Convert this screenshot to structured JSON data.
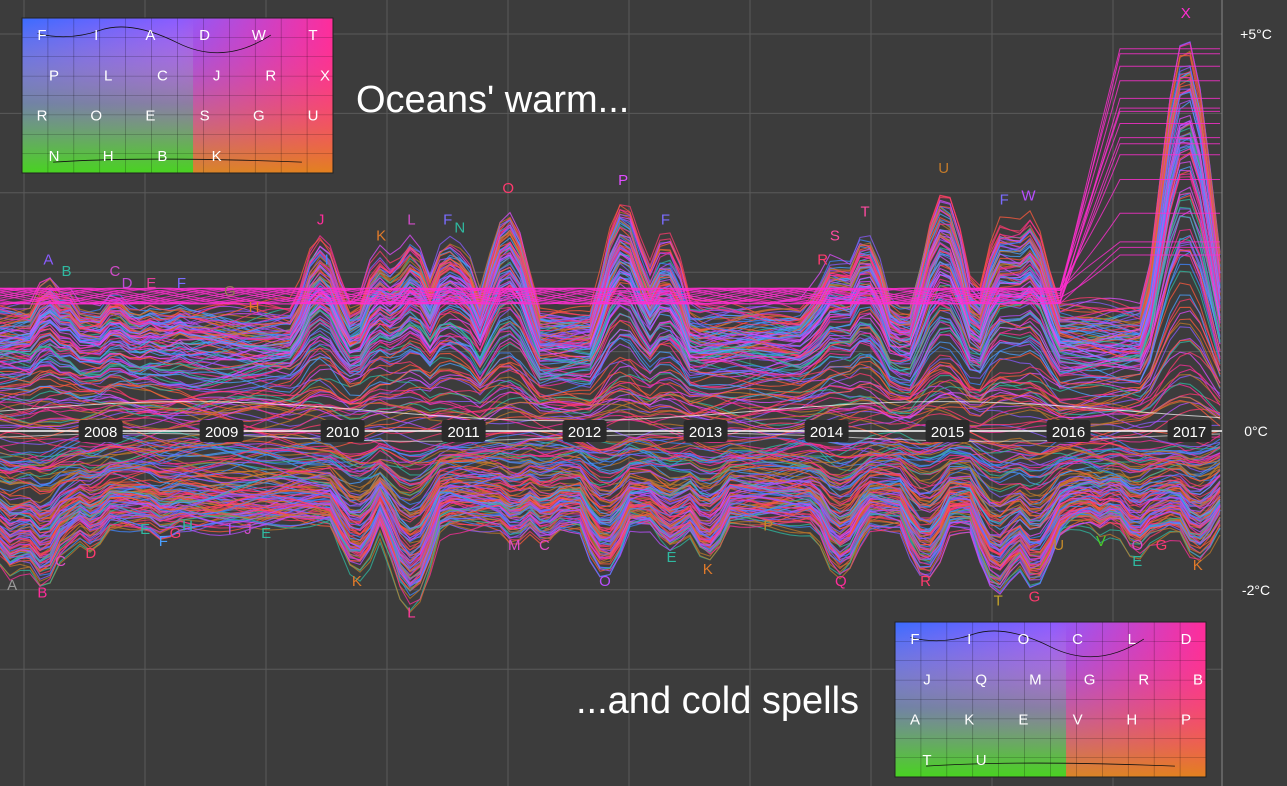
{
  "chart_data": {
    "type": "line",
    "title": "",
    "headline_warm": "Oceans' warm...",
    "headline_cold": "...and cold spells",
    "x": {
      "range": [
        2007.35,
        2017.45
      ],
      "tick_labels": [
        "2008",
        "2009",
        "2010",
        "2011",
        "2012",
        "2013",
        "2014",
        "2015",
        "2016",
        "2017"
      ],
      "tick_values": [
        2008,
        2009,
        2010,
        2011,
        2012,
        2013,
        2014,
        2015,
        2016,
        2017
      ]
    },
    "y": {
      "range": [
        -3.3,
        5.5
      ],
      "tick_labels": [
        "+5°C",
        "0°C",
        "-2°C"
      ],
      "tick_values": [
        5,
        0,
        -2
      ]
    },
    "grid": true,
    "colors": {
      "background": "#3c3c3c",
      "grid": "#5a5a5a",
      "baseline": "#ffffff",
      "palette": [
        "#ff2d9a",
        "#e04cff",
        "#8a5cff",
        "#3f86ff",
        "#2fb9a0",
        "#ff5a3c",
        "#c27a2a",
        "#ff3a6e",
        "#b84dff",
        "#4aa0ff"
      ]
    },
    "warm_events": [
      {
        "label": "A",
        "x": 2007.75,
        "y": 2.1,
        "color": "#8a5cff"
      },
      {
        "label": "B",
        "x": 2007.9,
        "y": 1.95,
        "color": "#2fb9a0"
      },
      {
        "label": "C",
        "x": 2008.3,
        "y": 1.95,
        "color": "#d04cc8"
      },
      {
        "label": "D",
        "x": 2008.4,
        "y": 1.8,
        "color": "#c04cd8"
      },
      {
        "label": "E",
        "x": 2008.6,
        "y": 1.8,
        "color": "#e0409a"
      },
      {
        "label": "F",
        "x": 2008.85,
        "y": 1.8,
        "color": "#7a6cff"
      },
      {
        "label": "G",
        "x": 2009.25,
        "y": 1.7,
        "color": "#9a7a5a"
      },
      {
        "label": "H",
        "x": 2009.45,
        "y": 1.5,
        "color": "#e07a2a"
      },
      {
        "label": "I",
        "x": 2010.05,
        "y": 2.1,
        "color": "#3f86ff"
      },
      {
        "label": "J",
        "x": 2010.0,
        "y": 2.6,
        "color": "#ff2d9a"
      },
      {
        "label": "K",
        "x": 2010.5,
        "y": 2.4,
        "color": "#e07a2a"
      },
      {
        "label": "L",
        "x": 2010.75,
        "y": 2.6,
        "color": "#d04cc8"
      },
      {
        "label": "F",
        "x": 2011.05,
        "y": 2.6,
        "color": "#7a6cff"
      },
      {
        "label": "N",
        "x": 2011.15,
        "y": 2.5,
        "color": "#2fb9a0"
      },
      {
        "label": "O",
        "x": 2011.55,
        "y": 3.0,
        "color": "#ff3a6e"
      },
      {
        "label": "P",
        "x": 2012.5,
        "y": 3.1,
        "color": "#e04cff"
      },
      {
        "label": "F",
        "x": 2012.85,
        "y": 2.6,
        "color": "#7a6cff"
      },
      {
        "label": "S",
        "x": 2014.25,
        "y": 2.4,
        "color": "#ff4aa0"
      },
      {
        "label": "R",
        "x": 2014.15,
        "y": 2.1,
        "color": "#ff3a6e"
      },
      {
        "label": "T",
        "x": 2014.5,
        "y": 2.7,
        "color": "#ff4aa0"
      },
      {
        "label": "U",
        "x": 2015.15,
        "y": 3.25,
        "color": "#c27a2a"
      },
      {
        "label": "F",
        "x": 2015.65,
        "y": 2.85,
        "color": "#7a6cff"
      },
      {
        "label": "W",
        "x": 2015.85,
        "y": 2.9,
        "color": "#b84dff"
      },
      {
        "label": "X",
        "x": 2017.15,
        "y": 5.2,
        "color": "#ff2dd0"
      }
    ],
    "cold_events": [
      {
        "label": "A",
        "x": 2007.45,
        "y": -2.0,
        "color": "#9a9a9a"
      },
      {
        "label": "B",
        "x": 2007.7,
        "y": -2.1,
        "color": "#ff2d9a"
      },
      {
        "label": "C",
        "x": 2007.85,
        "y": -1.7,
        "color": "#e04cc8"
      },
      {
        "label": "D",
        "x": 2008.1,
        "y": -1.6,
        "color": "#ff3a6e"
      },
      {
        "label": "E",
        "x": 2008.55,
        "y": -1.3,
        "color": "#2fb9a0"
      },
      {
        "label": "F",
        "x": 2008.7,
        "y": -1.45,
        "color": "#4aa0ff"
      },
      {
        "label": "G",
        "x": 2008.8,
        "y": -1.35,
        "color": "#ff3a6e"
      },
      {
        "label": "H",
        "x": 2008.9,
        "y": -1.25,
        "color": "#2fb9a0"
      },
      {
        "label": "I",
        "x": 2009.25,
        "y": -1.3,
        "color": "#b84dff"
      },
      {
        "label": "J",
        "x": 2009.4,
        "y": -1.3,
        "color": "#d04cc8"
      },
      {
        "label": "E",
        "x": 2009.55,
        "y": -1.35,
        "color": "#2fb9a0"
      },
      {
        "label": "K",
        "x": 2010.3,
        "y": -1.95,
        "color": "#e07a2a"
      },
      {
        "label": "L",
        "x": 2010.75,
        "y": -2.35,
        "color": "#ff3a9a"
      },
      {
        "label": "M",
        "x": 2011.6,
        "y": -1.5,
        "color": "#e04cc8"
      },
      {
        "label": "C",
        "x": 2011.85,
        "y": -1.5,
        "color": "#e04cc8"
      },
      {
        "label": "O",
        "x": 2012.35,
        "y": -1.95,
        "color": "#b84dff"
      },
      {
        "label": "E",
        "x": 2012.9,
        "y": -1.65,
        "color": "#2fb9a0"
      },
      {
        "label": "K",
        "x": 2013.2,
        "y": -1.8,
        "color": "#e07a2a"
      },
      {
        "label": "P",
        "x": 2013.7,
        "y": -1.25,
        "color": "#c28a2a"
      },
      {
        "label": "Q",
        "x": 2014.3,
        "y": -1.95,
        "color": "#ff2d9a"
      },
      {
        "label": "R",
        "x": 2015.0,
        "y": -1.95,
        "color": "#ff3a6e"
      },
      {
        "label": "T",
        "x": 2015.6,
        "y": -2.2,
        "color": "#c2a22a"
      },
      {
        "label": "G",
        "x": 2015.9,
        "y": -2.15,
        "color": "#ff3a6e"
      },
      {
        "label": "U",
        "x": 2016.1,
        "y": -1.5,
        "color": "#c28a2a"
      },
      {
        "label": "V",
        "x": 2016.45,
        "y": -1.45,
        "color": "#4acc2a"
      },
      {
        "label": "O",
        "x": 2016.75,
        "y": -1.5,
        "color": "#d04cc8"
      },
      {
        "label": "E",
        "x": 2016.75,
        "y": -1.7,
        "color": "#2fb9a0"
      },
      {
        "label": "G",
        "x": 2016.95,
        "y": -1.5,
        "color": "#ff3a6e"
      },
      {
        "label": "K",
        "x": 2017.25,
        "y": -1.75,
        "color": "#e07a2a"
      }
    ],
    "warm_map_letters": [
      "F",
      "I",
      "A",
      "D",
      "W",
      "T",
      "P",
      "L",
      "C",
      "J",
      "R",
      "X",
      "R",
      "O",
      "E",
      "S",
      "G",
      "U",
      "N",
      "H",
      "B",
      "K"
    ],
    "cold_map_letters": [
      "F",
      "I",
      "O",
      "C",
      "L",
      "D",
      "J",
      "Q",
      "M",
      "G",
      "R",
      "B",
      "A",
      "K",
      "E",
      "V",
      "H",
      "P",
      "T",
      "U"
    ]
  }
}
